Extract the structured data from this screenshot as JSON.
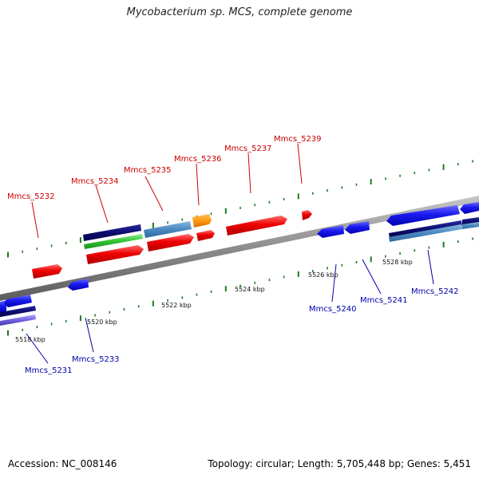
{
  "title": "Mycobacterium sp. MCS, complete genome",
  "footer": {
    "accession": "Accession: NC_008146",
    "info": "Topology: circular; Length: 5,705,448 bp; Genes: 5,451"
  },
  "colors": {
    "plus_label": "#cc0000",
    "minus_label": "#0000aa",
    "backbone": "#8c8c8c",
    "tick": "#1f7a1f"
  },
  "scale_labels": [
    "5518 kbp",
    "5520 kbp",
    "5522 kbp",
    "5524 kbp",
    "5526 kbp",
    "5528 kbp"
  ],
  "plus_genes": [
    "Mmcs_5232",
    "Mmcs_5234",
    "Mmcs_5235",
    "Mmcs_5236",
    "Mmcs_5237",
    "Mmcs_5239"
  ],
  "minus_genes": [
    "Mmcs_5231",
    "Mmcs_5233",
    "Mmcs_5240",
    "Mmcs_5241",
    "Mmcs_5242"
  ]
}
